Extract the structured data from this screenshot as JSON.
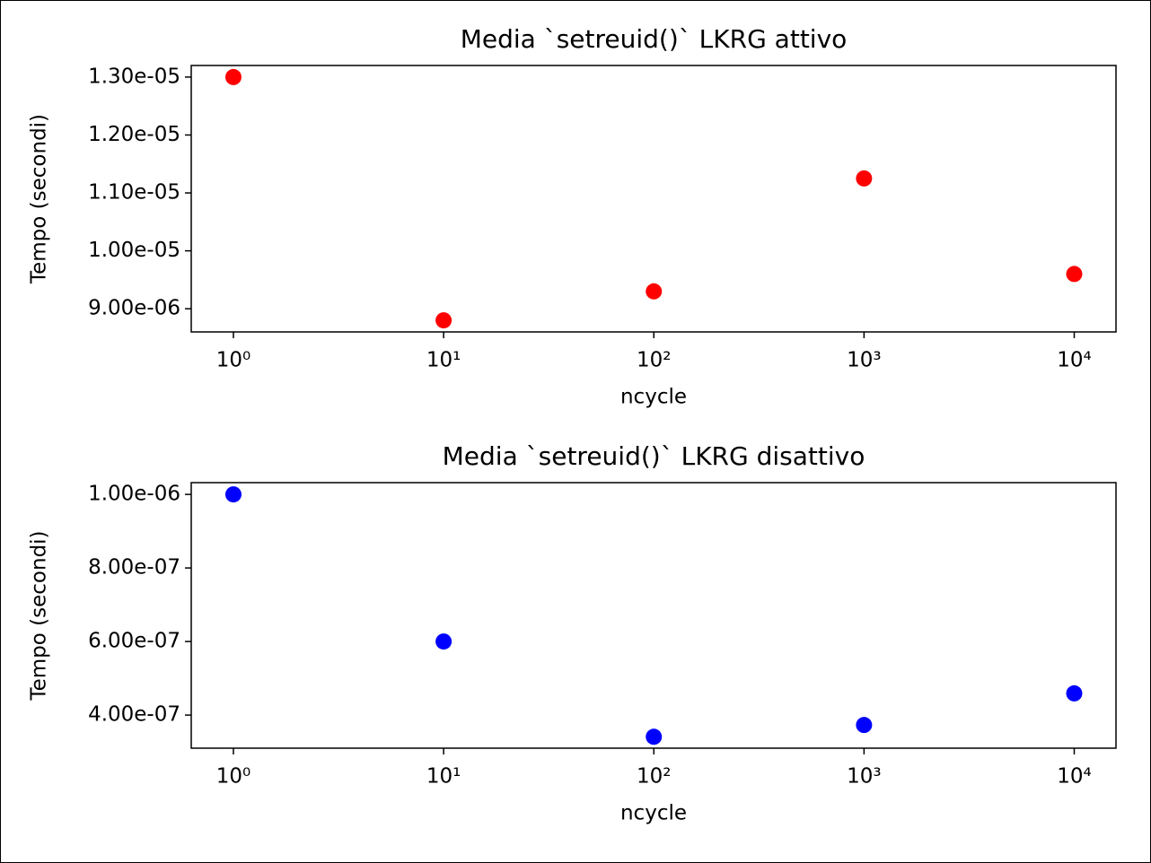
{
  "chart_data": [
    {
      "type": "scatter",
      "title": "Media `setreuid()` LKRG attivo",
      "x_label": "ncycle",
      "y_label": "Tempo (secondi)",
      "x": [
        1,
        10,
        100,
        1000,
        10000
      ],
      "values": [
        1.3e-05,
        8.8e-06,
        9.3e-06,
        1.125e-05,
        9.6e-06
      ],
      "color": "#ff0000",
      "xscale": "log",
      "xlim": [
        0.63,
        15800
      ],
      "xticks": [
        {
          "value": 1,
          "label": "10⁰"
        },
        {
          "value": 10,
          "label": "10¹"
        },
        {
          "value": 100,
          "label": "10²"
        },
        {
          "value": 1000,
          "label": "10³"
        },
        {
          "value": 10000,
          "label": "10⁴"
        }
      ],
      "ylim": [
        8.6e-06,
        1.32e-05
      ],
      "yticks": [
        {
          "value": 9e-06,
          "label": "9.00e-06"
        },
        {
          "value": 1e-05,
          "label": "1.00e-05"
        },
        {
          "value": 1.1e-05,
          "label": "1.10e-05"
        },
        {
          "value": 1.2e-05,
          "label": "1.20e-05"
        },
        {
          "value": 1.3e-05,
          "label": "1.30e-05"
        }
      ]
    },
    {
      "type": "scatter",
      "title": "Media `setreuid()` LKRG disattivo",
      "x_label": "ncycle",
      "y_label": "Tempo (secondi)",
      "x": [
        1,
        10,
        100,
        1000,
        10000
      ],
      "values": [
        1e-06,
        6e-07,
        3.41e-07,
        3.73e-07,
        4.59e-07
      ],
      "color": "#0000ff",
      "xscale": "log",
      "xlim": [
        0.63,
        15800
      ],
      "xticks": [
        {
          "value": 1,
          "label": "10⁰"
        },
        {
          "value": 10,
          "label": "10¹"
        },
        {
          "value": 100,
          "label": "10²"
        },
        {
          "value": 1000,
          "label": "10³"
        },
        {
          "value": 10000,
          "label": "10⁴"
        }
      ],
      "ylim": [
        3.1e-07,
        1.032e-06
      ],
      "yticks": [
        {
          "value": 4e-07,
          "label": "4.00e-07"
        },
        {
          "value": 6e-07,
          "label": "6.00e-07"
        },
        {
          "value": 8e-07,
          "label": "8.00e-07"
        },
        {
          "value": 1e-06,
          "label": "1.00e-06"
        }
      ]
    }
  ]
}
